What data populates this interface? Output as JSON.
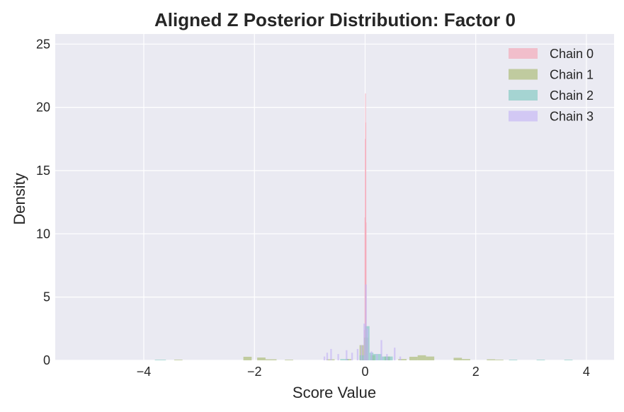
{
  "chart_data": {
    "type": "histogram",
    "title": "Aligned Z Posterior Distribution: Factor 0",
    "xlabel": "Score Value",
    "ylabel": "Density",
    "xlim": [
      -5.6,
      4.5
    ],
    "ylim": [
      0,
      25.8
    ],
    "xticks": [
      -4,
      -2,
      0,
      2,
      4
    ],
    "yticks": [
      0,
      5,
      10,
      15,
      20,
      25
    ],
    "grid": true,
    "legend_position": "top-right",
    "background": "#eaeaf2",
    "series": [
      {
        "name": "Chain 0",
        "color": "#f4a6b6",
        "bins": [
          {
            "x0": -0.03,
            "x1": -0.02,
            "y": 0.8
          },
          {
            "x0": -0.02,
            "x1": -0.01,
            "y": 2.4
          },
          {
            "x0": -0.01,
            "x1": -0.005,
            "y": 11.3
          },
          {
            "x0": -0.005,
            "x1": 0.0,
            "y": 17.5
          },
          {
            "x0": 0.0,
            "x1": 0.005,
            "y": 21.1
          },
          {
            "x0": 0.005,
            "x1": 0.01,
            "y": 18.8
          },
          {
            "x0": 0.01,
            "x1": 0.015,
            "y": 10.9
          },
          {
            "x0": 0.015,
            "x1": 0.025,
            "y": 2.7
          },
          {
            "x0": 0.025,
            "x1": 0.035,
            "y": 0.6
          }
        ]
      },
      {
        "name": "Chain 1",
        "color": "#a9ba72",
        "bins": [
          {
            "x0": -3.45,
            "x1": -3.3,
            "y": 0.05
          },
          {
            "x0": -2.2,
            "x1": -2.05,
            "y": 0.28
          },
          {
            "x0": -1.95,
            "x1": -1.8,
            "y": 0.22
          },
          {
            "x0": -1.8,
            "x1": -1.6,
            "y": 0.08
          },
          {
            "x0": -1.45,
            "x1": -1.3,
            "y": 0.05
          },
          {
            "x0": -0.7,
            "x1": -0.55,
            "y": 0.08
          },
          {
            "x0": -0.35,
            "x1": -0.25,
            "y": 0.1
          },
          {
            "x0": -0.1,
            "x1": -0.02,
            "y": 1.2
          },
          {
            "x0": -0.02,
            "x1": 0.06,
            "y": 1.8
          },
          {
            "x0": 0.1,
            "x1": 0.18,
            "y": 0.4
          },
          {
            "x0": 0.35,
            "x1": 0.45,
            "y": 0.3
          },
          {
            "x0": 0.6,
            "x1": 0.75,
            "y": 0.1
          },
          {
            "x0": 0.8,
            "x1": 0.95,
            "y": 0.28
          },
          {
            "x0": 0.95,
            "x1": 1.1,
            "y": 0.4
          },
          {
            "x0": 1.1,
            "x1": 1.25,
            "y": 0.3
          },
          {
            "x0": 1.6,
            "x1": 1.75,
            "y": 0.2
          },
          {
            "x0": 1.75,
            "x1": 1.9,
            "y": 0.1
          },
          {
            "x0": 2.2,
            "x1": 2.35,
            "y": 0.08
          },
          {
            "x0": 2.35,
            "x1": 2.5,
            "y": 0.05
          }
        ]
      },
      {
        "name": "Chain 2",
        "color": "#7fc8c0",
        "bins": [
          {
            "x0": -3.8,
            "x1": -3.6,
            "y": 0.05
          },
          {
            "x0": -0.45,
            "x1": -0.3,
            "y": 0.1
          },
          {
            "x0": -0.1,
            "x1": 0.0,
            "y": 0.4
          },
          {
            "x0": 0.0,
            "x1": 0.08,
            "y": 2.7
          },
          {
            "x0": 0.08,
            "x1": 0.15,
            "y": 0.6
          },
          {
            "x0": 0.15,
            "x1": 0.3,
            "y": 0.5
          },
          {
            "x0": 0.3,
            "x1": 0.5,
            "y": 0.3
          },
          {
            "x0": 2.6,
            "x1": 2.75,
            "y": 0.05
          },
          {
            "x0": 3.1,
            "x1": 3.25,
            "y": 0.05
          },
          {
            "x0": 3.6,
            "x1": 3.75,
            "y": 0.05
          }
        ]
      },
      {
        "name": "Chain 3",
        "color": "#c4b5f4",
        "bins": [
          {
            "x0": -0.75,
            "x1": -0.72,
            "y": 0.3
          },
          {
            "x0": -0.7,
            "x1": -0.67,
            "y": 0.6
          },
          {
            "x0": -0.63,
            "x1": -0.6,
            "y": 0.9
          },
          {
            "x0": -0.5,
            "x1": -0.47,
            "y": 0.5
          },
          {
            "x0": -0.35,
            "x1": -0.32,
            "y": 0.8
          },
          {
            "x0": -0.25,
            "x1": -0.22,
            "y": 0.6
          },
          {
            "x0": -0.15,
            "x1": -0.12,
            "y": 0.9
          },
          {
            "x0": -0.08,
            "x1": -0.05,
            "y": 1.2
          },
          {
            "x0": -0.03,
            "x1": 0.0,
            "y": 2.9
          },
          {
            "x0": 0.0,
            "x1": 0.03,
            "y": 6.0
          },
          {
            "x0": 0.03,
            "x1": 0.06,
            "y": 2.5
          },
          {
            "x0": 0.1,
            "x1": 0.13,
            "y": 0.7
          },
          {
            "x0": 0.2,
            "x1": 0.23,
            "y": 0.5
          },
          {
            "x0": 0.28,
            "x1": 0.31,
            "y": 1.6
          },
          {
            "x0": 0.38,
            "x1": 0.41,
            "y": 0.5
          },
          {
            "x0": 0.52,
            "x1": 0.55,
            "y": 1.0
          },
          {
            "x0": 0.62,
            "x1": 0.65,
            "y": 0.3
          }
        ]
      }
    ]
  }
}
